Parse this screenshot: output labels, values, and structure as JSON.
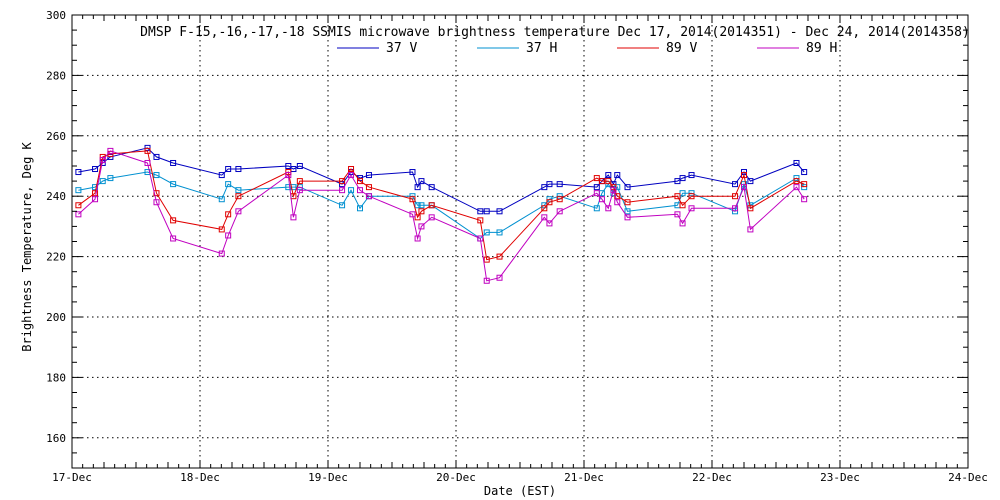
{
  "chart_data": {
    "type": "line",
    "title": "DMSP F-15,-16,-17,-18 SSMIS microwave brightness temperature Dec 17, 2014(2014351) - Dec 24, 2014(2014358)",
    "xlabel": "Date (EST)",
    "ylabel": "Brightness Temperature, Deg K",
    "xlim": [
      0,
      7
    ],
    "ylim": [
      150,
      300
    ],
    "xticks": [
      {
        "value": 0,
        "label": "17-Dec"
      },
      {
        "value": 1,
        "label": "18-Dec"
      },
      {
        "value": 2,
        "label": "19-Dec"
      },
      {
        "value": 3,
        "label": "20-Dec"
      },
      {
        "value": 4,
        "label": "21-Dec"
      },
      {
        "value": 5,
        "label": "22-Dec"
      },
      {
        "value": 6,
        "label": "23-Dec"
      },
      {
        "value": 7,
        "label": "24-Dec"
      }
    ],
    "yticks": [
      160,
      180,
      200,
      220,
      240,
      260,
      280,
      300
    ],
    "grid": true,
    "legend_position": "top-center",
    "series": [
      {
        "name": "37 V",
        "color": "#0000c0",
        "x": [
          0.05,
          0.18,
          0.24,
          0.3,
          0.59,
          0.66,
          0.79,
          1.17,
          1.22,
          1.3,
          1.69,
          1.73,
          1.78,
          2.11,
          2.18,
          2.25,
          2.32,
          2.66,
          2.7,
          2.73,
          2.81,
          3.19,
          3.24,
          3.34,
          3.69,
          3.73,
          3.81,
          4.1,
          4.14,
          4.19,
          4.23,
          4.26,
          4.34,
          4.73,
          4.77,
          4.84,
          5.18,
          5.25,
          5.3,
          5.66,
          5.72
        ],
        "y": [
          248,
          249,
          251,
          253,
          256,
          253,
          251,
          247,
          249,
          249,
          250,
          249,
          250,
          244,
          248,
          246,
          247,
          248,
          243,
          245,
          243,
          235,
          235,
          235,
          243,
          244,
          244,
          243,
          245,
          247,
          244,
          247,
          243,
          245,
          246,
          247,
          244,
          248,
          245,
          251,
          248
        ]
      },
      {
        "name": "37 H",
        "color": "#0090d0",
        "x": [
          0.05,
          0.18,
          0.24,
          0.3,
          0.59,
          0.66,
          0.79,
          1.17,
          1.22,
          1.3,
          1.69,
          1.73,
          1.78,
          2.11,
          2.18,
          2.25,
          2.32,
          2.66,
          2.7,
          2.73,
          2.81,
          3.19,
          3.24,
          3.34,
          3.69,
          3.73,
          3.81,
          4.1,
          4.14,
          4.19,
          4.23,
          4.26,
          4.34,
          4.73,
          4.77,
          4.84,
          5.18,
          5.25,
          5.3,
          5.66,
          5.72
        ],
        "y": [
          242,
          243,
          245,
          246,
          248,
          247,
          244,
          239,
          244,
          242,
          243,
          243,
          243,
          237,
          242,
          236,
          240,
          240,
          237,
          237,
          237,
          226,
          228,
          228,
          237,
          239,
          240,
          236,
          241,
          244,
          241,
          243,
          235,
          237,
          241,
          241,
          235,
          244,
          237,
          246,
          243
        ]
      },
      {
        "name": "89 V",
        "color": "#e00000",
        "x": [
          0.05,
          0.18,
          0.24,
          0.3,
          0.59,
          0.66,
          0.79,
          1.17,
          1.22,
          1.3,
          1.69,
          1.73,
          1.78,
          2.11,
          2.18,
          2.25,
          2.32,
          2.66,
          2.7,
          2.73,
          2.81,
          3.19,
          3.24,
          3.34,
          3.69,
          3.73,
          3.81,
          4.1,
          4.14,
          4.19,
          4.23,
          4.26,
          4.34,
          4.73,
          4.77,
          4.84,
          5.18,
          5.25,
          5.3,
          5.66,
          5.72
        ],
        "y": [
          237,
          241,
          253,
          254,
          255,
          241,
          232,
          229,
          234,
          240,
          248,
          240,
          245,
          245,
          249,
          245,
          243,
          239,
          233,
          235,
          237,
          232,
          219,
          220,
          236,
          238,
          239,
          246,
          245,
          245,
          243,
          240,
          238,
          240,
          237,
          240,
          240,
          247,
          236,
          245,
          244
        ]
      },
      {
        "name": "89 H",
        "color": "#c000c0",
        "x": [
          0.05,
          0.18,
          0.24,
          0.3,
          0.59,
          0.66,
          0.79,
          1.17,
          1.22,
          1.3,
          1.69,
          1.73,
          1.78,
          2.11,
          2.18,
          2.25,
          2.32,
          2.66,
          2.7,
          2.73,
          2.81,
          3.19,
          3.24,
          3.34,
          3.69,
          3.73,
          3.81,
          4.1,
          4.14,
          4.19,
          4.23,
          4.26,
          4.34,
          4.73,
          4.77,
          4.84,
          5.18,
          5.25,
          5.3,
          5.66,
          5.72
        ],
        "y": [
          234,
          239,
          252,
          255,
          251,
          238,
          226,
          221,
          227,
          235,
          247,
          233,
          242,
          242,
          247,
          242,
          240,
          234,
          226,
          230,
          233,
          226,
          212,
          213,
          233,
          231,
          235,
          241,
          239,
          236,
          242,
          238,
          233,
          234,
          231,
          236,
          236,
          243,
          229,
          243,
          239
        ]
      }
    ]
  }
}
